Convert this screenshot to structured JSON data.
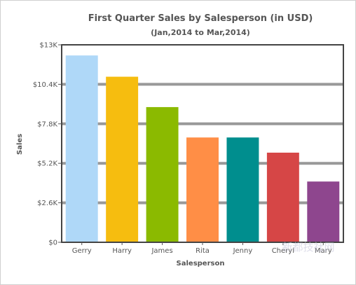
{
  "chart_data": {
    "type": "bar",
    "title": "First Quarter Sales by Salesperson (in USD)",
    "subtitle": "(Jan,2014 to Mar,2014)",
    "xlabel": "Salesperson",
    "ylabel": "Sales",
    "categories": [
      "Gerry",
      "Harry",
      "James",
      "Rita",
      "Jenny",
      "Cheryl",
      "Mary"
    ],
    "values": [
      12300,
      10900,
      8900,
      6900,
      6900,
      5900,
      4000
    ],
    "colors": [
      "#afd8f8",
      "#f6bd0f",
      "#8bba00",
      "#ff8e46",
      "#008e8e",
      "#d64646",
      "#8e468e"
    ],
    "ylim": [
      0,
      13000
    ],
    "yticks": [
      0,
      2600,
      5200,
      7800,
      10400,
      13000
    ],
    "ytick_labels": [
      "$0",
      "$2.6K",
      "$5.2K",
      "$7.8K",
      "$10.4K",
      "$13K"
    ],
    "grid": true,
    "legend": "none"
  },
  "watermark": "新都技社网"
}
